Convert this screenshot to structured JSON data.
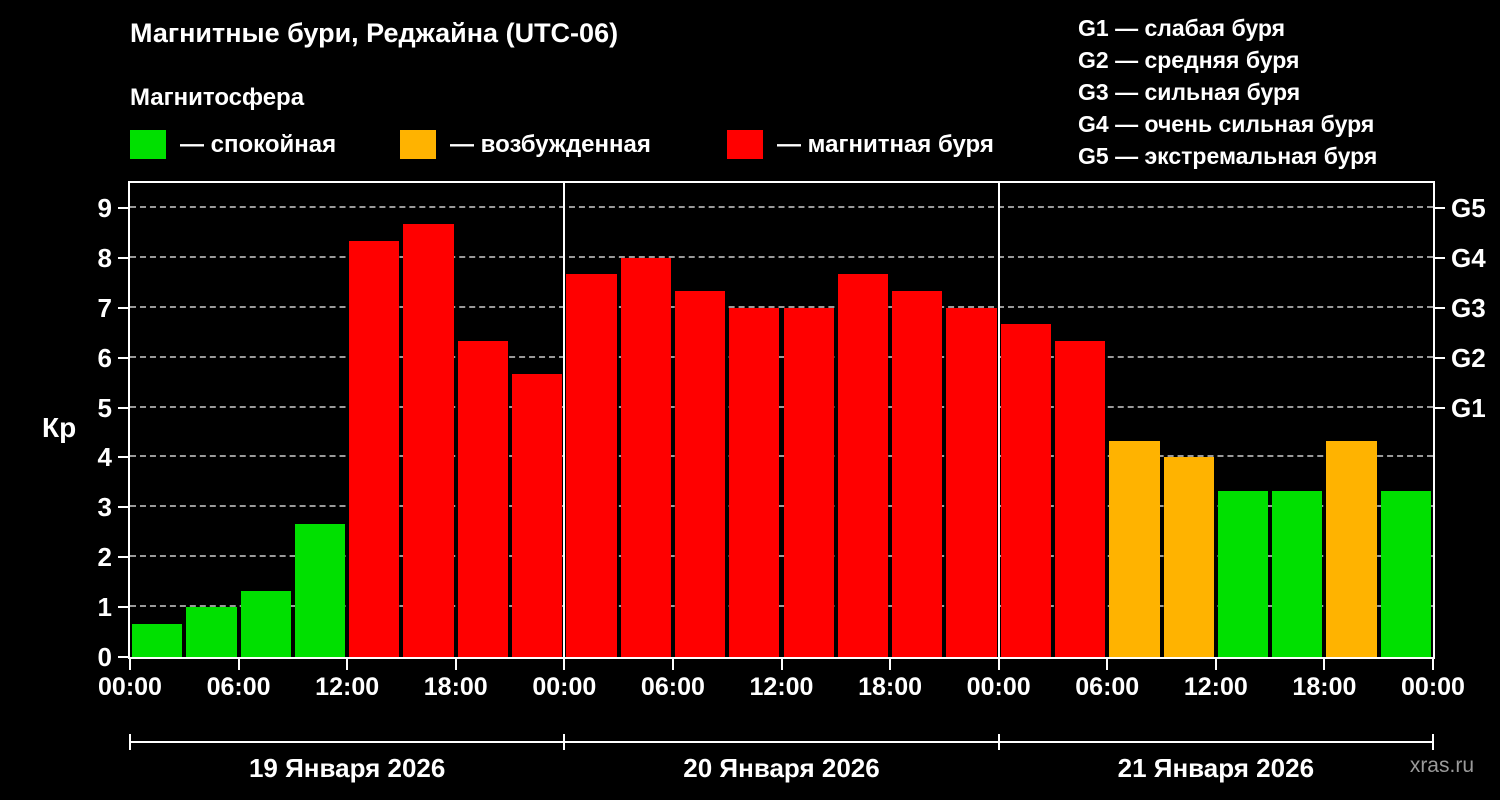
{
  "title": "Магнитные бури, Реджайна (UTC-06)",
  "subtitle": "Магнитосфера",
  "legend": {
    "calm": "— спокойная",
    "excited": "— возбужденная",
    "storm": "— магнитная буря"
  },
  "g_legend": [
    "G1 — слабая буря",
    "G2 — средняя буря",
    "G3 — сильная буря",
    "G4 — очень сильная буря",
    "G5 — экстремальная буря"
  ],
  "watermark": "xras.ru",
  "colors": {
    "calm": "#00e000",
    "excited": "#ffb300",
    "storm": "#ff0000"
  },
  "chart_data": {
    "type": "bar",
    "title": "Магнитные бури, Реджайна (UTC-06)",
    "ylabel": "Кр",
    "ylim": [
      0,
      9.5
    ],
    "yticks": [
      0,
      1,
      2,
      3,
      4,
      5,
      6,
      7,
      8,
      9
    ],
    "right_axis": [
      {
        "label": "G5",
        "value": 9
      },
      {
        "label": "G4",
        "value": 8
      },
      {
        "label": "G3",
        "value": 7
      },
      {
        "label": "G2",
        "value": 6
      },
      {
        "label": "G1",
        "value": 5
      }
    ],
    "x_tick_labels": [
      "00:00",
      "06:00",
      "12:00",
      "18:00",
      "00:00",
      "06:00",
      "12:00",
      "18:00",
      "00:00",
      "06:00",
      "12:00",
      "18:00",
      "00:00"
    ],
    "interval_hours": 3,
    "thresholds": {
      "excited": 4,
      "storm": 5
    },
    "days": [
      {
        "label": "19 Января 2026",
        "values": [
          0.67,
          1.0,
          1.33,
          2.67,
          8.33,
          8.67,
          6.33,
          5.67
        ]
      },
      {
        "label": "20 Января 2026",
        "values": [
          7.67,
          8.0,
          7.33,
          7.0,
          7.0,
          7.67,
          7.33,
          7.0
        ]
      },
      {
        "label": "21 Января 2026",
        "values": [
          6.67,
          6.33,
          4.33,
          4.0,
          3.33,
          3.33,
          4.33,
          3.33
        ]
      }
    ],
    "grid": true,
    "legend_position": "top"
  }
}
